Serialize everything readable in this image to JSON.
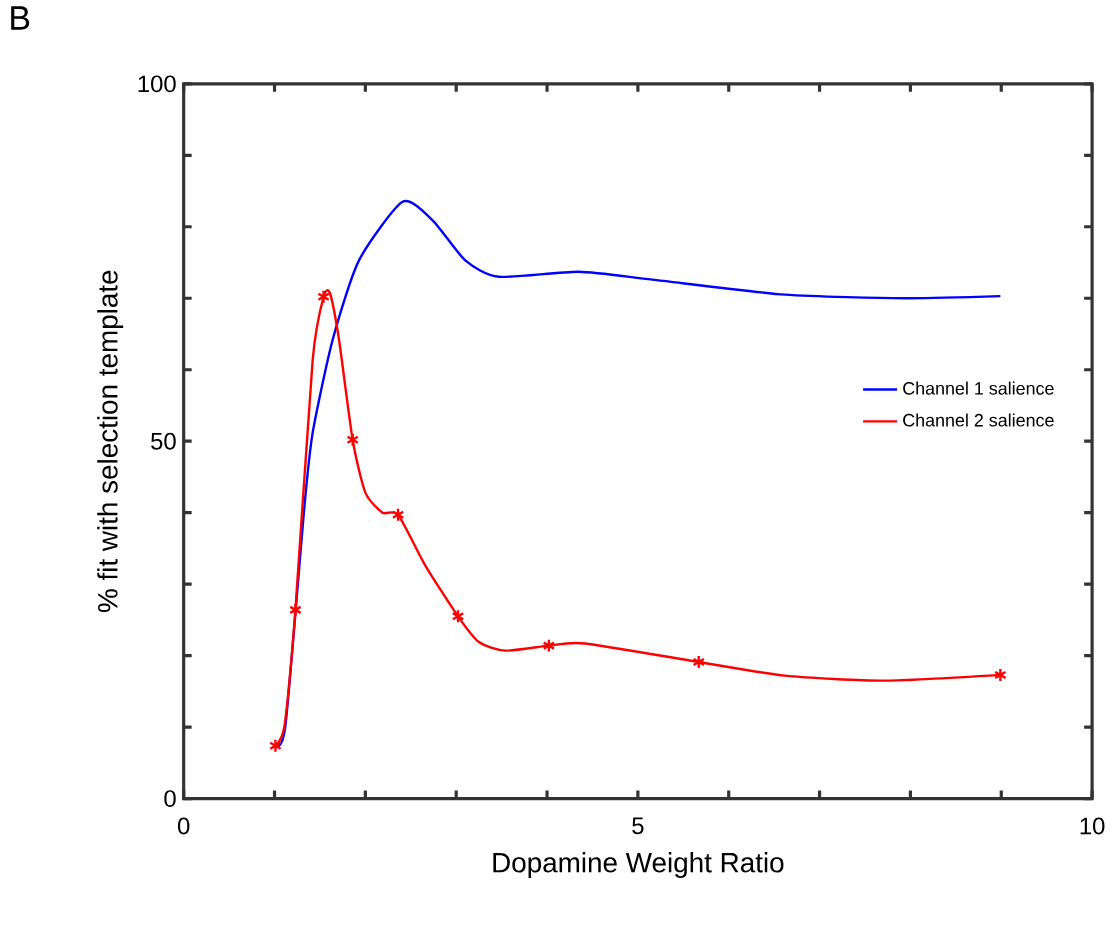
{
  "chart_data": {
    "type": "line",
    "xlabel": "Dopamine Weight Ratio",
    "ylabel": "% fit with selection template",
    "annotations": [
      "B"
    ],
    "xlim": [
      0,
      10
    ],
    "ylim": [
      0,
      100
    ],
    "xticks": [
      0,
      {
        "value": 1,
        "label": null
      },
      {
        "value": 2,
        "label": null
      },
      {
        "value": 3,
        "label": null
      },
      {
        "value": 4,
        "label": null
      },
      5,
      {
        "value": 6,
        "label": null
      },
      {
        "value": 7,
        "label": null
      },
      {
        "value": 8,
        "label": null
      },
      {
        "value": 9,
        "label": null
      },
      10
    ],
    "yticks": [
      0,
      {
        "value": 10,
        "label": null
      },
      {
        "value": 20,
        "label": null
      },
      {
        "value": 30,
        "label": null
      },
      {
        "value": 40,
        "label": null
      },
      50,
      {
        "value": 60,
        "label": null
      },
      {
        "value": 70,
        "label": null
      },
      {
        "value": 80,
        "label": null
      },
      {
        "value": 90,
        "label": null
      },
      100
    ],
    "legend": "right",
    "series": [
      {
        "name": "Channel 1 salience",
        "color": "#0000ff",
        "marker": "none",
        "x": [
          1.01,
          1.12,
          1.33,
          1.42,
          1.64,
          1.93,
          2.41,
          2.74,
          3.1,
          3.47,
          4.35,
          5.16,
          6.62,
          7.95,
          8.99
        ],
        "values": [
          7.4,
          10.2,
          41,
          51.2,
          64.2,
          75.3,
          83.5,
          80.9,
          75.3,
          73.0,
          73.7,
          72.6,
          70.5,
          70.0,
          70.3
        ]
      },
      {
        "name": "Channel 2 salience",
        "color": "#ff0000",
        "marker": "none",
        "x": [
          1.01,
          1.11,
          1.23,
          1.42,
          1.54,
          1.61,
          1.71,
          1.86,
          2.0,
          2.19,
          2.36,
          2.66,
          3.02,
          3.25,
          3.54,
          4.02,
          4.42,
          5.67,
          6.62,
          7.73,
          8.99
        ],
        "values": [
          7.4,
          10.2,
          26.4,
          61.4,
          70.2,
          70.7,
          64.2,
          50.2,
          42.8,
          40.0,
          39.7,
          32.6,
          25.5,
          21.9,
          20.7,
          21.4,
          21.7,
          19.1,
          17.2,
          16.5,
          17.3
        ]
      },
      {
        "type": "scatter",
        "color": "#ff0000",
        "marker": "cross",
        "x": [
          1.01,
          1.23,
          1.54,
          1.86,
          2.36,
          3.02,
          4.02,
          5.67,
          8.99
        ],
        "values": [
          7.4,
          26.4,
          70.2,
          50.2,
          39.7,
          25.5,
          21.4,
          19.1,
          17.3
        ]
      }
    ]
  }
}
